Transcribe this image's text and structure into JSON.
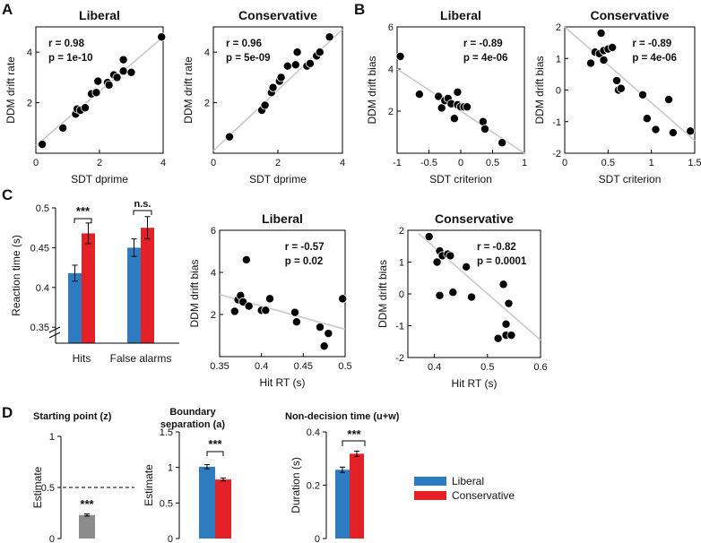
{
  "colors": {
    "liberal": "#2e7bc0",
    "conservative": "#e32127",
    "starting_point": "#8c8c8c",
    "fit": "#c8c8c8",
    "dot": "#000000"
  },
  "panel_labels": {
    "a": "A",
    "b": "B",
    "c": "C",
    "d": "D"
  },
  "legend": {
    "liberal": "Liberal",
    "conservative": "Conservative"
  },
  "chart_data": [
    {
      "id": "A1",
      "type": "scatter",
      "title": "Liberal",
      "xlabel": "SDT dprime",
      "ylabel": "DDM drift rate",
      "xlim": [
        0,
        4
      ],
      "ylim": [
        0,
        5
      ],
      "xticks": [
        0,
        2,
        4
      ],
      "yticks": [
        2,
        4
      ],
      "stat_r": "r = 0.98",
      "stat_p": "p = 1e-10",
      "fit": [
        [
          0,
          0.3
        ],
        [
          4,
          4.6
        ]
      ],
      "points": [
        [
          0.2,
          0.35
        ],
        [
          0.85,
          1.0
        ],
        [
          1.25,
          1.55
        ],
        [
          1.3,
          1.75
        ],
        [
          1.4,
          1.7
        ],
        [
          1.55,
          1.8
        ],
        [
          1.75,
          2.35
        ],
        [
          1.9,
          2.4
        ],
        [
          1.95,
          2.85
        ],
        [
          2.25,
          2.8
        ],
        [
          2.3,
          2.7
        ],
        [
          2.45,
          3.1
        ],
        [
          2.55,
          3.0
        ],
        [
          2.75,
          3.25
        ],
        [
          2.75,
          3.7
        ],
        [
          3.0,
          3.2
        ],
        [
          3.95,
          4.6
        ]
      ]
    },
    {
      "id": "A2",
      "type": "scatter",
      "title": "Conservative",
      "xlabel": "SDT dprime",
      "ylabel": "DDM drift rate",
      "xlim": [
        0,
        4
      ],
      "ylim": [
        0,
        5
      ],
      "xticks": [
        0,
        2,
        4
      ],
      "yticks": [
        2,
        4
      ],
      "stat_r": "r = 0.96",
      "stat_p": "p = 5e-09",
      "fit": [
        [
          0,
          0.1
        ],
        [
          4,
          4.9
        ]
      ],
      "points": [
        [
          0.5,
          0.65
        ],
        [
          1.5,
          1.7
        ],
        [
          1.6,
          1.9
        ],
        [
          1.8,
          2.4
        ],
        [
          1.85,
          2.6
        ],
        [
          2.05,
          2.85
        ],
        [
          2.1,
          3.0
        ],
        [
          2.3,
          3.45
        ],
        [
          2.55,
          3.5
        ],
        [
          2.6,
          4.0
        ],
        [
          2.9,
          3.45
        ],
        [
          3.0,
          3.55
        ],
        [
          3.2,
          3.85
        ],
        [
          3.3,
          4.0
        ],
        [
          3.6,
          4.6
        ]
      ]
    },
    {
      "id": "B1",
      "type": "scatter",
      "title": "Liberal",
      "xlabel": "SDT criterion",
      "ylabel": "DDM drift bias",
      "xlim": [
        -1,
        1
      ],
      "ylim": [
        0,
        6
      ],
      "xticks": [
        -1,
        -0.5,
        0,
        0.5,
        1
      ],
      "yticks": [
        2,
        4,
        6
      ],
      "stat_r": "r = -0.89",
      "stat_p": "p = 4e-06",
      "fit": [
        [
          -1,
          4.0
        ],
        [
          1,
          0
        ]
      ],
      "points": [
        [
          -0.95,
          4.6
        ],
        [
          -0.65,
          2.8
        ],
        [
          -0.35,
          2.7
        ],
        [
          -0.3,
          2.15
        ],
        [
          -0.25,
          2.5
        ],
        [
          -0.2,
          2.6
        ],
        [
          -0.15,
          2.35
        ],
        [
          -0.1,
          1.65
        ],
        [
          -0.05,
          2.9
        ],
        [
          -0.05,
          2.3
        ],
        [
          0.0,
          2.2
        ],
        [
          0.05,
          2.2
        ],
        [
          0.1,
          2.2
        ],
        [
          0.35,
          1.5
        ],
        [
          0.38,
          1.15
        ],
        [
          0.65,
          0.5
        ]
      ]
    },
    {
      "id": "B2",
      "type": "scatter",
      "title": "Conservative",
      "xlabel": "SDT criterion",
      "ylabel": "DDM drift bias",
      "xlim": [
        0,
        1.5
      ],
      "ylim": [
        -2,
        2
      ],
      "xticks": [
        0,
        0.5,
        1,
        1.5
      ],
      "yticks": [
        -2,
        -1,
        0,
        1,
        2
      ],
      "stat_r": "r = -0.89",
      "stat_p": "p = 4e-06",
      "fit": [
        [
          0,
          2.0
        ],
        [
          1.5,
          -1.6
        ]
      ],
      "points": [
        [
          0.3,
          0.85
        ],
        [
          0.35,
          1.2
        ],
        [
          0.4,
          1.15
        ],
        [
          0.42,
          1.8
        ],
        [
          0.45,
          1.25
        ],
        [
          0.45,
          0.95
        ],
        [
          0.5,
          1.3
        ],
        [
          0.55,
          1.35
        ],
        [
          0.6,
          0.3
        ],
        [
          0.62,
          0.0
        ],
        [
          0.65,
          0.05
        ],
        [
          0.9,
          -0.15
        ],
        [
          0.95,
          -0.9
        ],
        [
          1.05,
          -1.25
        ],
        [
          1.2,
          -0.3
        ],
        [
          1.25,
          -1.35
        ],
        [
          1.45,
          -1.3
        ]
      ]
    },
    {
      "id": "C1",
      "type": "bar",
      "ylabel": "Reaction time (s)",
      "categories": [
        "Hits",
        "False alarms"
      ],
      "ylim": [
        0.33,
        0.5
      ],
      "yticks": [
        0.35,
        0.4,
        0.45,
        0.5
      ],
      "series": [
        {
          "name": "Liberal",
          "values": [
            0.418,
            0.45
          ],
          "err": [
            0.01,
            0.011
          ]
        },
        {
          "name": "Conservative",
          "values": [
            0.468,
            0.475
          ],
          "err": [
            0.013,
            0.014
          ]
        }
      ],
      "annotations": [
        "***",
        "n.s."
      ]
    },
    {
      "id": "C2",
      "type": "scatter",
      "title": "Liberal",
      "xlabel": "Hit RT (s)",
      "ylabel": "DDM drift bias",
      "xlim": [
        0.35,
        0.5
      ],
      "ylim": [
        0,
        6
      ],
      "xticks": [
        0.35,
        0.4,
        0.45,
        0.5
      ],
      "yticks": [
        2,
        4,
        6
      ],
      "stat_r": "r = -0.57",
      "stat_p": "p = 0.02",
      "fit": [
        [
          0.35,
          2.95
        ],
        [
          0.5,
          1.3
        ]
      ],
      "points": [
        [
          0.368,
          2.15
        ],
        [
          0.372,
          2.7
        ],
        [
          0.375,
          2.9
        ],
        [
          0.378,
          2.6
        ],
        [
          0.382,
          4.6
        ],
        [
          0.385,
          2.4
        ],
        [
          0.4,
          2.2
        ],
        [
          0.405,
          2.2
        ],
        [
          0.41,
          2.75
        ],
        [
          0.44,
          2.1
        ],
        [
          0.442,
          1.65
        ],
        [
          0.47,
          1.4
        ],
        [
          0.475,
          0.5
        ],
        [
          0.48,
          1.1
        ],
        [
          0.497,
          2.75
        ]
      ]
    },
    {
      "id": "C3",
      "type": "scatter",
      "title": "Conservative",
      "xlabel": "Hit RT (s)",
      "ylabel": "DDM drift bias",
      "xlim": [
        0.35,
        0.6
      ],
      "ylim": [
        -2,
        2
      ],
      "xticks": [
        0.4,
        0.5,
        0.6
      ],
      "yticks": [
        -2,
        -1,
        0,
        1,
        2
      ],
      "stat_r": "r = -0.82",
      "stat_p": "p = 0.0001",
      "fit": [
        [
          0.37,
          1.9
        ],
        [
          0.6,
          -1.45
        ]
      ],
      "points": [
        [
          0.39,
          1.8
        ],
        [
          0.405,
          1.0
        ],
        [
          0.41,
          1.35
        ],
        [
          0.41,
          -0.05
        ],
        [
          0.415,
          1.2
        ],
        [
          0.425,
          1.25
        ],
        [
          0.43,
          1.2
        ],
        [
          0.435,
          0.05
        ],
        [
          0.46,
          0.85
        ],
        [
          0.47,
          -0.1
        ],
        [
          0.52,
          -1.4
        ],
        [
          0.53,
          0.3
        ],
        [
          0.535,
          -1.3
        ],
        [
          0.535,
          -0.95
        ],
        [
          0.54,
          -0.3
        ],
        [
          0.545,
          -1.3
        ]
      ]
    },
    {
      "id": "D1",
      "type": "bar",
      "title": "Starting point (z)",
      "ylabel": "Estimate",
      "ylim": [
        0,
        1
      ],
      "yticks": [
        0,
        0.5,
        1
      ],
      "reference": 0.5,
      "series": [
        {
          "name": "Starting point",
          "values": [
            0.23
          ],
          "err": [
            0.01
          ]
        }
      ],
      "annotations": [
        "***"
      ]
    },
    {
      "id": "D2",
      "type": "bar",
      "title": "Boundary",
      "title2": "separation (a)",
      "ylabel": "Estimate",
      "ylim": [
        0,
        1.5
      ],
      "yticks": [
        0,
        0.5,
        1,
        1.5
      ],
      "series": [
        {
          "name": "Liberal",
          "values": [
            1.01
          ],
          "err": [
            0.03
          ]
        },
        {
          "name": "Conservative",
          "values": [
            0.83
          ],
          "err": [
            0.02
          ]
        }
      ],
      "annotations": [
        "***"
      ]
    },
    {
      "id": "D3",
      "type": "bar",
      "title": "Non-decision time (u+w)",
      "ylabel": "Duration (s)",
      "ylim": [
        0,
        0.4
      ],
      "yticks": [
        0,
        0.2,
        0.4
      ],
      "series": [
        {
          "name": "Liberal",
          "values": [
            0.258
          ],
          "err": [
            0.01
          ]
        },
        {
          "name": "Conservative",
          "values": [
            0.318
          ],
          "err": [
            0.01
          ]
        }
      ],
      "annotations": [
        "***"
      ]
    }
  ]
}
